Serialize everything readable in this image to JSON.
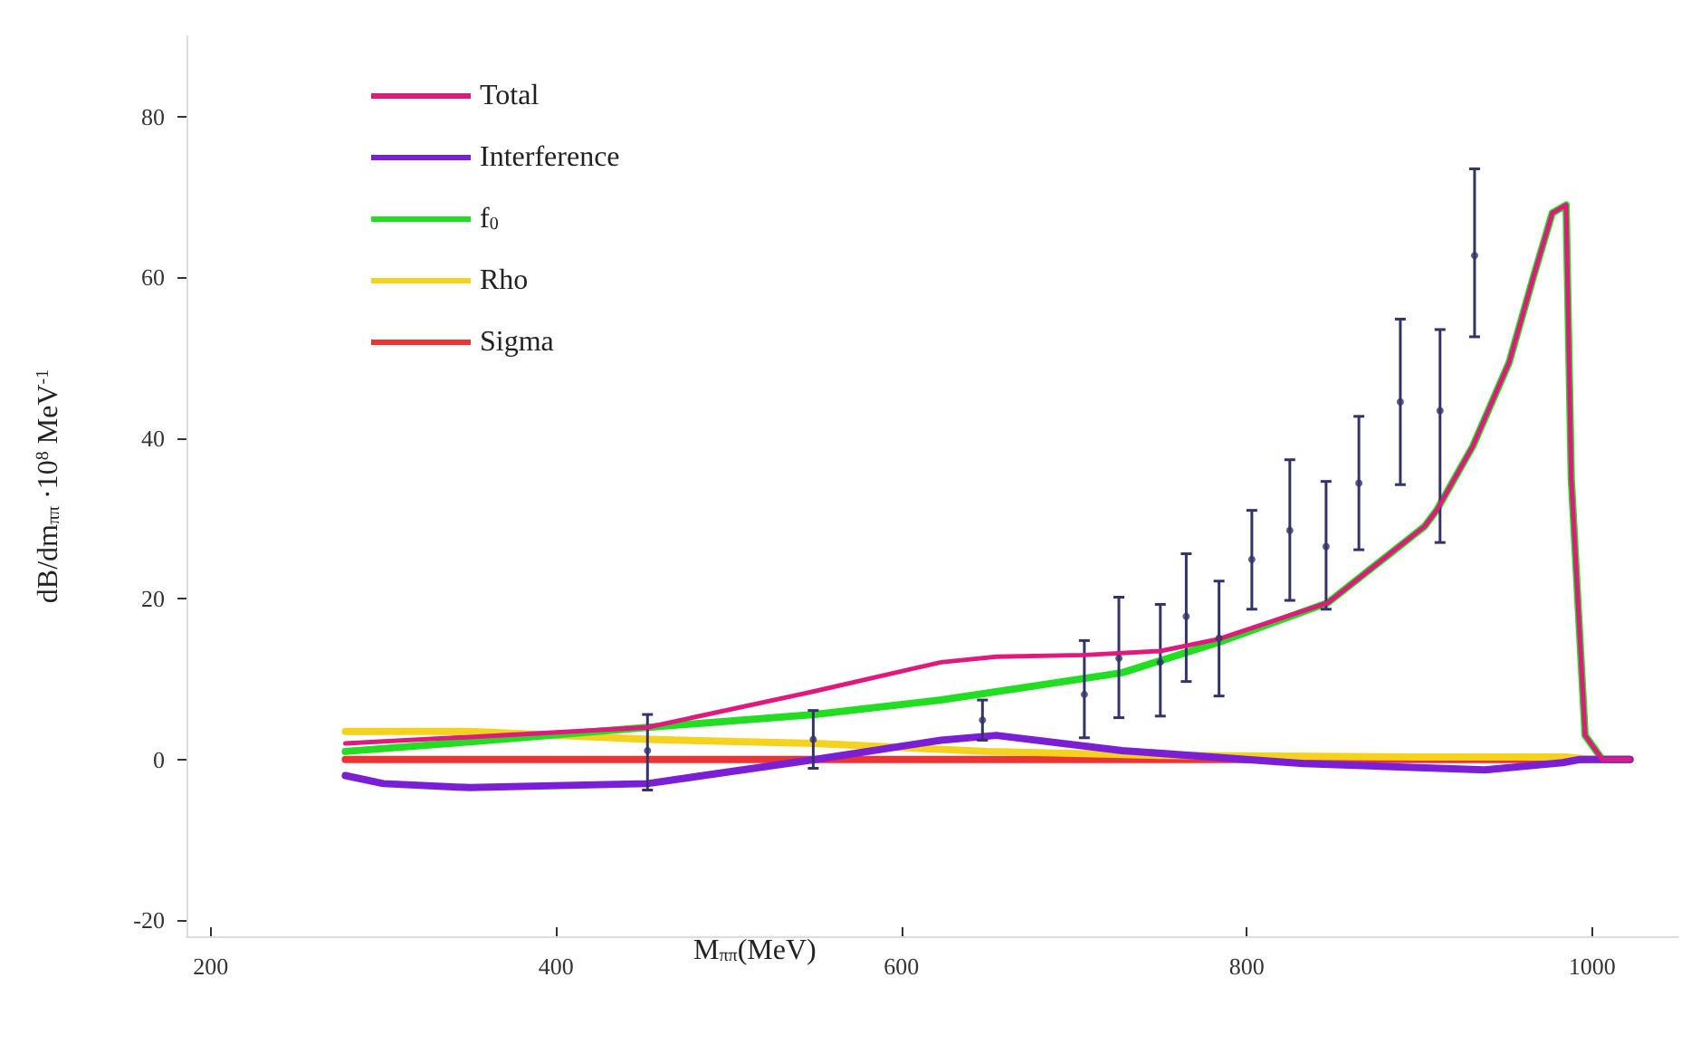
{
  "chart_data": {
    "type": "line",
    "xlabel": "M$_{ππ}$(MeV)",
    "ylabel": "dB/dm$_{ππ}$ ·10$^{8}$ MeV$^{-1}$",
    "xlim": [
      186,
      1050
    ],
    "xticks": [
      200,
      400,
      600,
      800,
      1000
    ],
    "ylim": [
      -22,
      90
    ],
    "yticks": [
      -20,
      0,
      20,
      40,
      60,
      80
    ],
    "grid": false,
    "legend": "top left",
    "marker": "none",
    "line_style": "solid",
    "series": [
      {
        "name": "Total",
        "color": "#e0197d",
        "x": [
          278,
          350,
          453,
          550,
          623,
          655,
          706,
          750,
          784,
          847,
          903,
          910,
          931,
          952,
          966,
          977,
          985,
          988,
          996,
          1006,
          1022
        ],
        "values": [
          2,
          2.8,
          4,
          8.5,
          12.1,
          12.8,
          13,
          13.5,
          15,
          19.5,
          29,
          31,
          39,
          49.4,
          60,
          68,
          69,
          35,
          3,
          0,
          0
        ]
      },
      {
        "name": "Interference",
        "color": "#7b1fd6",
        "x": [
          278,
          300,
          350,
          453,
          550,
          623,
          655,
          728,
          833,
          938,
          983,
          993,
          1022
        ],
        "values": [
          -2,
          -3,
          -3.5,
          -3,
          0,
          2.4,
          3,
          1.1,
          -0.5,
          -1.3,
          -0.4,
          0,
          0
        ]
      },
      {
        "name": "f$_{0}$",
        "color": "#22dd22",
        "x": [
          278,
          350,
          453,
          550,
          623,
          728,
          784,
          847,
          903,
          910,
          931,
          952,
          966,
          977,
          985,
          988,
          996,
          1006,
          1022
        ],
        "values": [
          1,
          2.2,
          4,
          5.6,
          7.4,
          10.8,
          14.6,
          19.5,
          29,
          31,
          39,
          49.4,
          60,
          68,
          69,
          35,
          3,
          0,
          0
        ]
      },
      {
        "name": "Rho",
        "color": "#f4d21e",
        "x": [
          278,
          350,
          453,
          550,
          650,
          750,
          900,
          985,
          1000,
          1022
        ],
        "values": [
          3.5,
          3.5,
          2.5,
          2,
          1,
          0.5,
          0.3,
          0.3,
          0,
          0
        ]
      },
      {
        "name": "Sigma",
        "color": "#ee3333",
        "x": [
          278,
          1022
        ],
        "values": [
          0,
          0
        ]
      },
      {
        "type": "scatter",
        "marker": "circle",
        "color": "#33336b",
        "x": [
          453,
          549,
          647,
          706,
          726,
          750,
          765,
          784,
          803,
          825,
          846,
          865,
          889,
          912,
          932
        ],
        "values": [
          1.1,
          2.5,
          4.9,
          8.1,
          12.6,
          12.1,
          17.8,
          15.1,
          24.9,
          28.5,
          26.5,
          34.4,
          44.5,
          43.4,
          62.7
        ],
        "errors": [
          [
            -3.8,
            5.6
          ],
          [
            -1.1,
            6.1
          ],
          [
            2.4,
            7.4
          ],
          [
            2.7,
            14.8
          ],
          [
            5.2,
            20.2
          ],
          [
            5.4,
            19.3
          ],
          [
            9.7,
            25.6
          ],
          [
            7.9,
            22.2
          ],
          [
            18.7,
            31
          ],
          [
            19.8,
            37.3
          ],
          [
            18.7,
            34.6
          ],
          [
            26.1,
            42.7
          ],
          [
            34.2,
            54.8
          ],
          [
            27,
            53.5
          ],
          [
            52.6,
            73.5
          ]
        ]
      }
    ]
  }
}
